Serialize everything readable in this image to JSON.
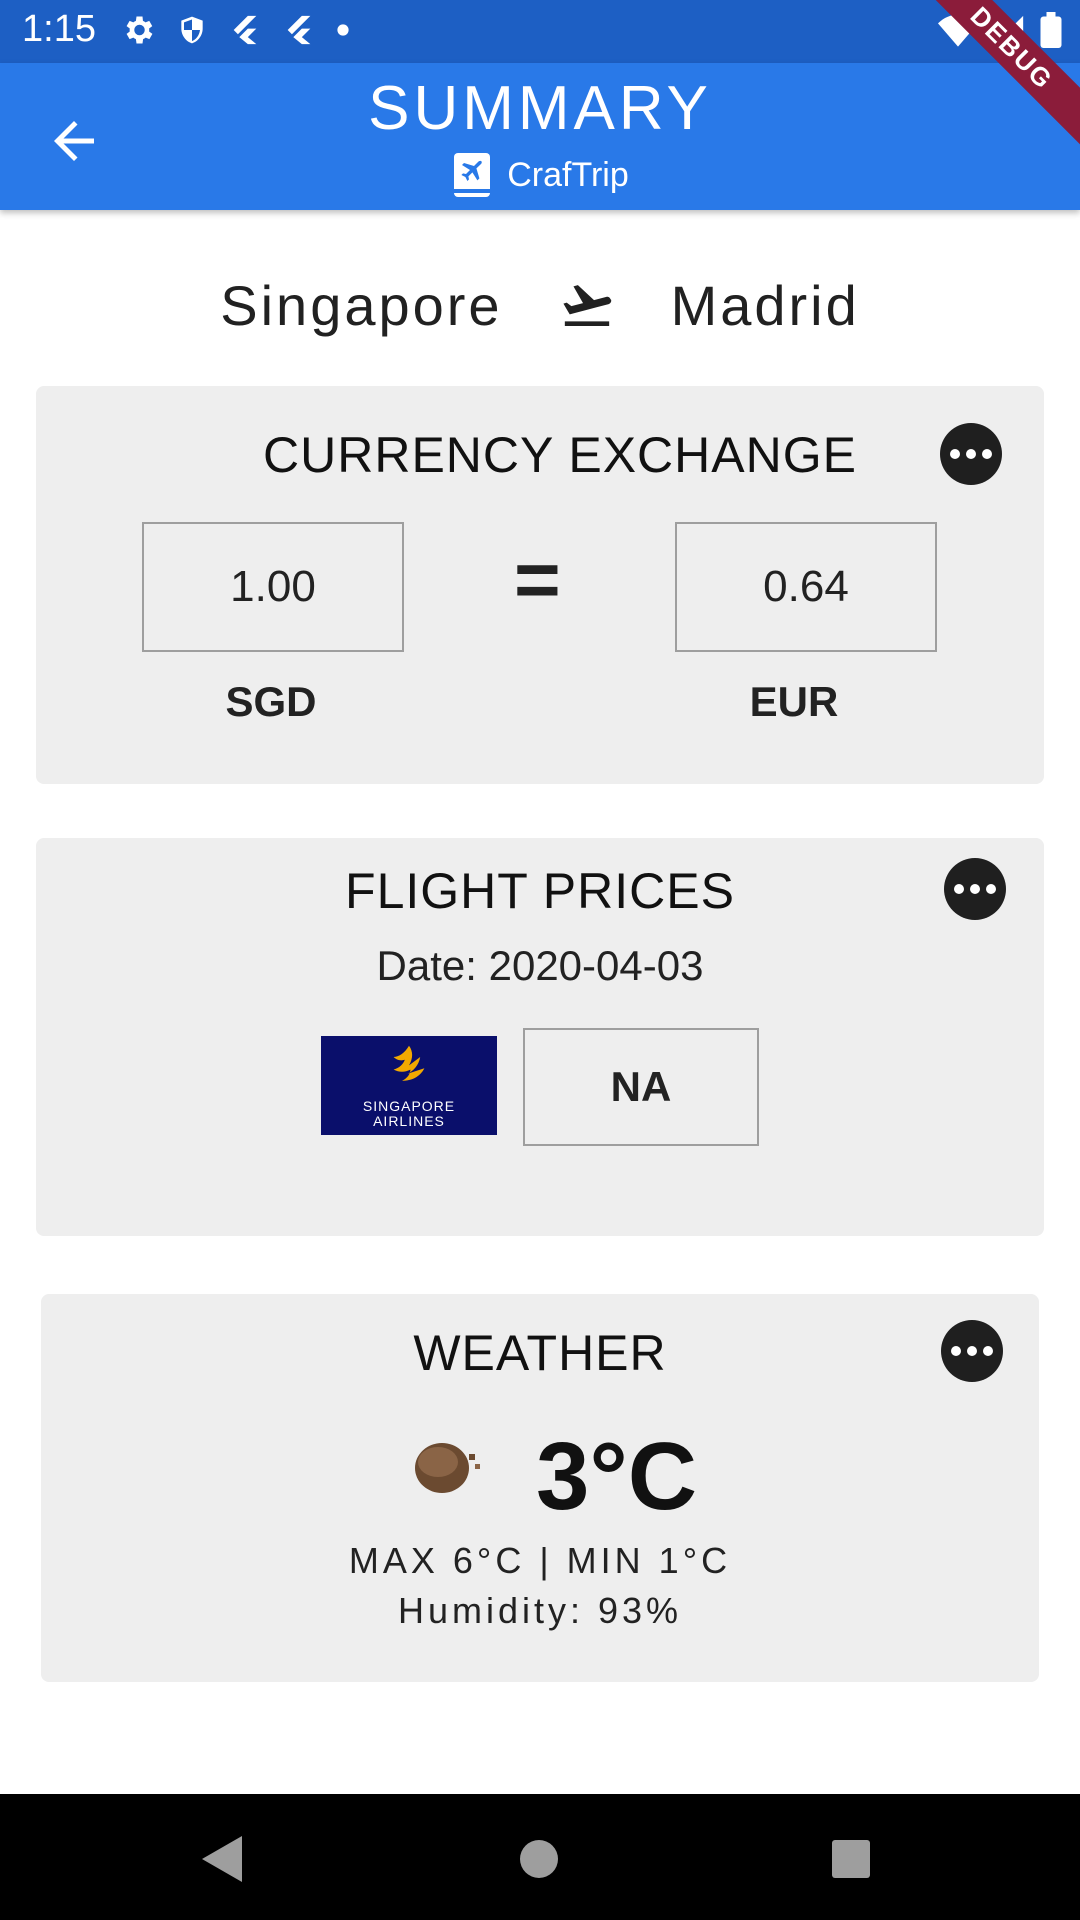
{
  "status_bar": {
    "time": "1:15",
    "left_icons": [
      "gear-icon",
      "shield-icon",
      "flutter-icon",
      "flutter-icon",
      "dot-icon"
    ],
    "right_icons": [
      "wifi-icon",
      "signal-icon",
      "battery-icon"
    ],
    "debug_label": "DEBUG"
  },
  "app_bar": {
    "title": "SUMMARY",
    "subtitle": "CrafTrip",
    "background": "#2979e8"
  },
  "route": {
    "origin": "Singapore",
    "destination": "Madrid"
  },
  "currency": {
    "title": "CURRENCY EXCHANGE",
    "from_value": "1.00",
    "from_code": "SGD",
    "equals": "=",
    "to_value": "0.64",
    "to_code": "EUR"
  },
  "flights": {
    "title": "FLIGHT PRICES",
    "date": "Date: 2020-04-03",
    "airline_logo_text": [
      "SINGAPORE",
      "AIRLINES"
    ],
    "price": "NA"
  },
  "weather": {
    "title": "WEATHER",
    "temperature": "3°C",
    "max_min": "MAX 6°C | MIN 1°C",
    "humidity": "Humidity: 93%"
  }
}
